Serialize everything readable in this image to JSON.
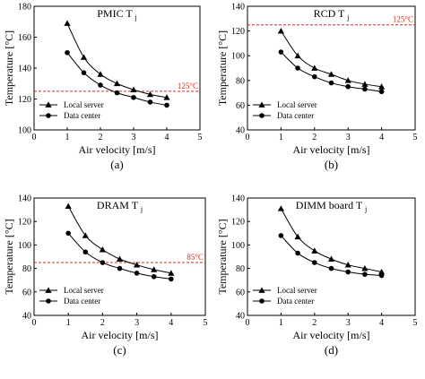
{
  "chart_data": [
    {
      "type": "line",
      "title": "PMIC T",
      "title_sub": "j",
      "panel_label": "(a)",
      "xlabel": "Air velocity [m/s]",
      "ylabel": "Temperature [°C]",
      "xlim": [
        0,
        5
      ],
      "ylim": [
        100,
        180
      ],
      "xticks": [
        "0",
        "1",
        "2",
        "3",
        "4",
        "5"
      ],
      "yticks": [
        "100",
        "120",
        "140",
        "160",
        "180"
      ],
      "threshold": {
        "value": 125,
        "label": "125°C",
        "color": "#e0281e"
      },
      "legend_position": "bottom-left",
      "series": [
        {
          "name": "Local server",
          "marker": "triangle",
          "x": [
            1,
            1.5,
            2,
            2.5,
            3,
            3.5,
            4
          ],
          "y": [
            169,
            147,
            136,
            130,
            126,
            123,
            121
          ]
        },
        {
          "name": "Data center",
          "marker": "circle",
          "x": [
            1,
            1.5,
            2,
            2.5,
            3,
            3.5,
            4
          ],
          "y": [
            150,
            137,
            129,
            124,
            121,
            118,
            116
          ]
        }
      ]
    },
    {
      "type": "line",
      "title": "RCD T",
      "title_sub": "j",
      "panel_label": "(b)",
      "xlabel": "Air velocity [m/s]",
      "ylabel": "Temperature [°C]",
      "xlim": [
        0,
        5
      ],
      "ylim": [
        40,
        140
      ],
      "xticks": [
        "0",
        "1",
        "2",
        "3",
        "4",
        "5"
      ],
      "yticks": [
        "40",
        "60",
        "80",
        "100",
        "120",
        "140"
      ],
      "threshold": {
        "value": 125,
        "label": "125°C",
        "color": "#e0281e"
      },
      "legend_position": "bottom-left",
      "series": [
        {
          "name": "Local server",
          "marker": "triangle",
          "x": [
            1,
            1.5,
            2,
            2.5,
            3,
            3.5,
            4
          ],
          "y": [
            120,
            100,
            90,
            85,
            80,
            77,
            75
          ]
        },
        {
          "name": "Data center",
          "marker": "circle",
          "x": [
            1,
            1.5,
            2,
            2.5,
            3,
            3.5,
            4
          ],
          "y": [
            103,
            90,
            83,
            78,
            75,
            73,
            71
          ]
        }
      ]
    },
    {
      "type": "line",
      "title": "DRAM T",
      "title_sub": "j",
      "panel_label": "(c)",
      "xlabel": "Air velocity [m/s]",
      "ylabel": "Temperature [°C]",
      "xlim": [
        0,
        5
      ],
      "ylim": [
        40,
        140
      ],
      "xticks": [
        "0",
        "1",
        "2",
        "3",
        "4",
        "5"
      ],
      "yticks": [
        "40",
        "60",
        "80",
        "100",
        "120",
        "140"
      ],
      "threshold": {
        "value": 85,
        "label": "85°C",
        "color": "#e0281e"
      },
      "legend_position": "bottom-left",
      "series": [
        {
          "name": "Local server",
          "marker": "triangle",
          "x": [
            1,
            1.5,
            2,
            2.5,
            3,
            3.5,
            4
          ],
          "y": [
            133,
            108,
            96,
            88,
            83,
            79,
            76
          ]
        },
        {
          "name": "Data center",
          "marker": "circle",
          "x": [
            1,
            1.5,
            2,
            2.5,
            3,
            3.5,
            4
          ],
          "y": [
            110,
            94,
            85,
            80,
            76,
            73,
            71
          ]
        }
      ]
    },
    {
      "type": "line",
      "title": "DIMM board T",
      "title_sub": "j",
      "panel_label": "(d)",
      "xlabel": "Air velocity [m/s]",
      "ylabel": "Temperature [°C]",
      "xlim": [
        0,
        5
      ],
      "ylim": [
        40,
        140
      ],
      "xticks": [
        "0",
        "1",
        "2",
        "3",
        "4",
        "5"
      ],
      "yticks": [
        "40",
        "60",
        "80",
        "100",
        "120",
        "140"
      ],
      "threshold": null,
      "legend_position": "bottom-left",
      "series": [
        {
          "name": "Local server",
          "marker": "triangle",
          "x": [
            1,
            1.5,
            2,
            2.5,
            3,
            3.5,
            4
          ],
          "y": [
            131,
            107,
            95,
            88,
            83,
            80,
            77
          ]
        },
        {
          "name": "Data center",
          "marker": "circle",
          "x": [
            1,
            1.5,
            2,
            2.5,
            3,
            3.5,
            4
          ],
          "y": [
            108,
            93,
            85,
            80,
            77,
            75,
            74
          ]
        }
      ]
    }
  ]
}
